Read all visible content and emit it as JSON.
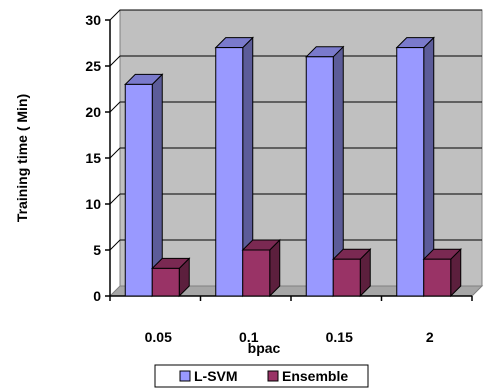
{
  "chart_data": {
    "type": "bar",
    "style": "3d-clustered-column",
    "title": "",
    "xlabel": "bpac",
    "ylabel": "Training time ( Min)",
    "categories": [
      "0.05",
      "0.1",
      "0.15",
      "2"
    ],
    "series": [
      {
        "name": "L-SVM",
        "values": [
          23,
          27,
          26,
          27
        ],
        "color": "#9999ff"
      },
      {
        "name": "Ensemble",
        "values": [
          3,
          5,
          4,
          4
        ],
        "color": "#993366"
      }
    ],
    "ylim": [
      0,
      30
    ],
    "yticks": [
      0,
      5,
      10,
      15,
      20,
      25,
      30
    ],
    "grid": true,
    "legend": "bottom",
    "plot_wall_color": "#c0c0c0"
  }
}
